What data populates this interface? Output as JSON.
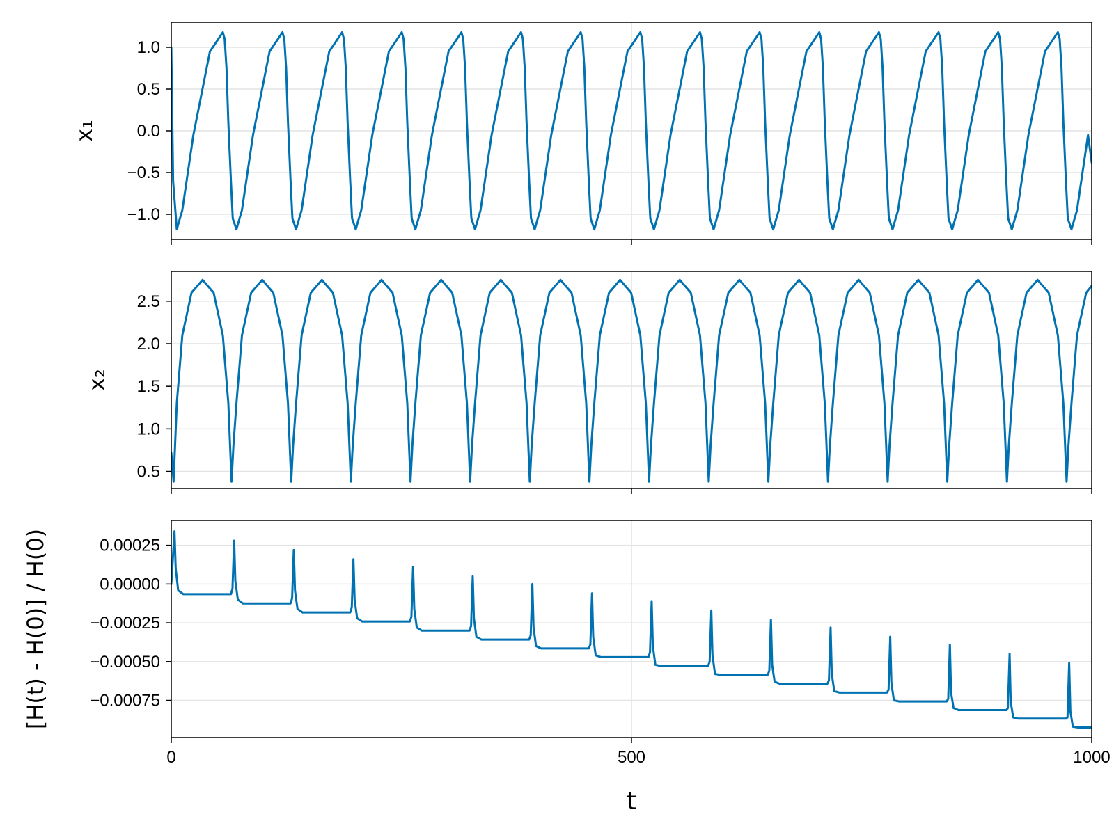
{
  "chart_data": [
    {
      "type": "line",
      "ylabel": "x₁",
      "xlabel": "",
      "xlim": [
        0,
        1000
      ],
      "ylim": [
        -1.3,
        1.3
      ],
      "yticks": [
        1.0,
        0.5,
        0.0,
        -0.5,
        -1.0
      ],
      "ytick_labels": [
        "1.0",
        "0.5",
        "0.0",
        "−0.5",
        "−1.0"
      ],
      "xticks": [
        0,
        500,
        1000
      ],
      "xtick_labels": [
        "",
        "",
        ""
      ],
      "grid": true,
      "series": [
        {
          "color": "#0072b2",
          "period": 64.8,
          "x": [
            0,
            2,
            6,
            12,
            24,
            42,
            56,
            58,
            60,
            62,
            64.8,
            66.8,
            70.8,
            76.8,
            88.8,
            106.8,
            120.8,
            122.8,
            124.8,
            126.8,
            129.6,
            131.6,
            135.6,
            141.6,
            153.6,
            171.6,
            185.6,
            187.6,
            189.6,
            191.6,
            194.4,
            196.4,
            200.4,
            206.4,
            218.4,
            236.4,
            250.4,
            252.4,
            254.4,
            256.4,
            259.2,
            261.2,
            265.2,
            271.2,
            283.2,
            301.2,
            315.2,
            317.2,
            319.2,
            321.2,
            324.0,
            326.0,
            330.0,
            336.0,
            348.0,
            366.0,
            380.0,
            382.0,
            384.0,
            386.0,
            388.8,
            390.8,
            394.8,
            400.8,
            412.8,
            430.8,
            444.8,
            446.8,
            448.8,
            450.8,
            453.6,
            455.6,
            459.6,
            465.6,
            477.6,
            495.6,
            509.6,
            511.6,
            513.6,
            515.6,
            518.4,
            520.4,
            524.4,
            530.4,
            542.4,
            560.4,
            574.4,
            576.4,
            578.4,
            580.4,
            583.2,
            585.2,
            589.2,
            595.2,
            607.2,
            625.2,
            639.2,
            641.2,
            643.2,
            645.2,
            648.0,
            650.0,
            654.0,
            660.0,
            672.0,
            690.0,
            704.0,
            706.0,
            708.0,
            710.0,
            712.8,
            714.8,
            718.8,
            724.8,
            736.8,
            754.8,
            768.8,
            770.8,
            772.8,
            774.8,
            777.6,
            779.6,
            783.6,
            789.6,
            801.6,
            819.6,
            833.6,
            835.6,
            837.6,
            839.6,
            842.4,
            844.4,
            848.4,
            854.4,
            866.4,
            884.4,
            898.4,
            900.4,
            902.4,
            904.4,
            907.2,
            909.2,
            913.2,
            919.2,
            931.2,
            949.2,
            963.2,
            965.2,
            967.2,
            969.2,
            972.0,
            974.0,
            978.0,
            984.0,
            996.0,
            1000
          ],
          "y": [
            1.0,
            -0.6,
            -1.18,
            -0.95,
            -0.05,
            0.95,
            1.18,
            1.1,
            0.75,
            0.1,
            -0.6,
            -1.05,
            -1.18,
            -0.95,
            -0.05,
            0.95,
            1.18,
            1.1,
            0.75,
            0.1,
            -0.6,
            -1.05,
            -1.18,
            -0.95,
            -0.05,
            0.95,
            1.18,
            1.1,
            0.75,
            0.1,
            -0.6,
            -1.05,
            -1.18,
            -0.95,
            -0.05,
            0.95,
            1.18,
            1.1,
            0.75,
            0.1,
            -0.6,
            -1.05,
            -1.18,
            -0.95,
            -0.05,
            0.95,
            1.18,
            1.1,
            0.75,
            0.1,
            -0.6,
            -1.05,
            -1.18,
            -0.95,
            -0.05,
            0.95,
            1.18,
            1.1,
            0.75,
            0.1,
            -0.6,
            -1.05,
            -1.18,
            -0.95,
            -0.05,
            0.95,
            1.18,
            1.1,
            0.75,
            0.1,
            -0.6,
            -1.05,
            -1.18,
            -0.95,
            -0.05,
            0.95,
            1.18,
            1.1,
            0.75,
            0.1,
            -0.6,
            -1.05,
            -1.18,
            -0.95,
            -0.05,
            0.95,
            1.18,
            1.1,
            0.75,
            0.1,
            -0.6,
            -1.05,
            -1.18,
            -0.95,
            -0.05,
            0.95,
            1.18,
            1.1,
            0.75,
            0.1,
            -0.6,
            -1.05,
            -1.18,
            -0.95,
            -0.05,
            0.95,
            1.18,
            1.1,
            0.75,
            0.1,
            -0.6,
            -1.05,
            -1.18,
            -0.95,
            -0.05,
            0.95,
            1.18,
            1.1,
            0.75,
            0.1,
            -0.6,
            -1.05,
            -1.18,
            -0.95,
            -0.05,
            0.95,
            1.18,
            1.1,
            0.75,
            0.1,
            -0.6,
            -1.05,
            -1.18,
            -0.95,
            -0.05,
            0.95,
            1.18,
            1.1,
            0.75,
            0.1,
            -0.6,
            -1.05,
            -1.18,
            -0.95,
            -0.05,
            0.95,
            1.18,
            1.1,
            0.75,
            0.1,
            -0.6,
            -1.05,
            -1.18,
            -0.95,
            -0.05,
            -0.38
          ]
        }
      ]
    },
    {
      "type": "line",
      "ylabel": "x₂",
      "xlabel": "",
      "xlim": [
        0,
        1000
      ],
      "ylim": [
        0.3,
        2.85
      ],
      "yticks": [
        2.5,
        2.0,
        1.5,
        1.0,
        0.5
      ],
      "ytick_labels": [
        "2.5",
        "2.0",
        "1.5",
        "1.0",
        "0.5"
      ],
      "xticks": [
        0,
        500,
        1000
      ],
      "xtick_labels": [
        "",
        "",
        ""
      ],
      "grid": true,
      "series": [
        {
          "color": "#0072b2",
          "x": [
            0,
            2.5,
            6,
            12,
            22,
            34,
            46,
            56,
            62,
            65.5,
            67.5,
            70.8,
            76.8,
            86.8,
            98.8,
            110.8,
            120.8,
            126.8,
            130.3,
            132.3,
            135.6,
            141.6,
            151.6,
            163.6,
            175.6,
            185.6,
            191.6,
            195.1,
            197.1,
            200.4,
            206.4,
            216.4,
            228.4,
            240.4,
            250.4,
            256.4,
            259.9,
            261.9,
            265.2,
            271.2,
            281.2,
            293.2,
            305.2,
            315.2,
            321.2,
            324.7,
            326.7,
            330.0,
            336.0,
            346.0,
            358.0,
            370.0,
            380.0,
            386.0,
            389.5,
            391.5,
            394.8,
            400.8,
            410.8,
            422.8,
            434.8,
            444.8,
            450.8,
            454.3,
            456.3,
            459.6,
            465.6,
            475.6,
            487.6,
            499.6,
            509.6,
            515.6,
            519.1,
            521.1,
            524.4,
            530.4,
            540.4,
            552.4,
            564.4,
            574.4,
            580.4,
            583.9,
            585.9,
            589.2,
            595.2,
            605.2,
            617.2,
            629.2,
            639.2,
            645.2,
            648.7,
            650.7,
            654.0,
            660.0,
            670.0,
            682.0,
            694.0,
            704.0,
            710.0,
            713.5,
            715.5,
            718.8,
            724.8,
            734.8,
            746.8,
            758.8,
            768.8,
            774.8,
            778.3,
            780.3,
            783.6,
            789.6,
            799.6,
            811.6,
            823.6,
            833.6,
            839.6,
            843.1,
            845.1,
            848.4,
            854.4,
            864.4,
            876.4,
            888.4,
            898.4,
            904.4,
            907.9,
            909.9,
            913.2,
            919.2,
            929.2,
            941.2,
            953.2,
            963.2,
            969.2,
            972.7,
            974.7,
            978.0,
            984.0,
            994.0,
            1000
          ],
          "y": [
            0.72,
            0.38,
            1.3,
            2.1,
            2.6,
            2.75,
            2.6,
            2.1,
            1.3,
            0.38,
            0.8,
            1.3,
            2.1,
            2.6,
            2.75,
            2.6,
            2.1,
            1.3,
            0.38,
            0.8,
            1.3,
            2.1,
            2.6,
            2.75,
            2.6,
            2.1,
            1.3,
            0.38,
            0.8,
            1.3,
            2.1,
            2.6,
            2.75,
            2.6,
            2.1,
            1.3,
            0.38,
            0.8,
            1.3,
            2.1,
            2.6,
            2.75,
            2.6,
            2.1,
            1.3,
            0.38,
            0.8,
            1.3,
            2.1,
            2.6,
            2.75,
            2.6,
            2.1,
            1.3,
            0.38,
            0.8,
            1.3,
            2.1,
            2.6,
            2.75,
            2.6,
            2.1,
            1.3,
            0.38,
            0.8,
            1.3,
            2.1,
            2.6,
            2.75,
            2.6,
            2.1,
            1.3,
            0.38,
            0.8,
            1.3,
            2.1,
            2.6,
            2.75,
            2.6,
            2.1,
            1.3,
            0.38,
            0.8,
            1.3,
            2.1,
            2.6,
            2.75,
            2.6,
            2.1,
            1.3,
            0.38,
            0.8,
            1.3,
            2.1,
            2.6,
            2.75,
            2.6,
            2.1,
            1.3,
            0.38,
            0.8,
            1.3,
            2.1,
            2.6,
            2.75,
            2.6,
            2.1,
            1.3,
            0.38,
            0.8,
            1.3,
            2.1,
            2.6,
            2.75,
            2.6,
            2.1,
            1.3,
            0.38,
            0.8,
            1.3,
            2.1,
            2.6,
            2.75,
            2.6,
            2.1,
            1.3,
            0.38,
            0.8,
            1.3,
            2.1,
            2.6,
            2.75,
            2.6,
            2.1,
            1.3,
            0.38,
            0.8,
            1.3,
            2.1,
            2.6,
            2.68
          ]
        }
      ]
    },
    {
      "type": "line",
      "ylabel": "[H(t) - H(0)] / H(0)",
      "xlabel": "t",
      "xlim": [
        0,
        1000
      ],
      "ylim": [
        -0.00099,
        0.00041
      ],
      "yticks": [
        0.00025,
        0.0,
        -0.00025,
        -0.0005,
        -0.00075
      ],
      "ytick_labels": [
        "0.00025",
        "0.00000",
        "−0.00025",
        "−0.00050",
        "−0.00075"
      ],
      "xticks": [
        0,
        500,
        1000
      ],
      "xtick_labels": [
        "0",
        "500",
        "1000"
      ],
      "grid": true,
      "series": [
        {
          "color": "#0072b2",
          "x": [
            0,
            3.5,
            4.8,
            7.5,
            13,
            64.8,
            66.5,
            68.3,
            69.6,
            72.3,
            77.8,
            129.6,
            131.3,
            133.1,
            134.4,
            137.1,
            142.6,
            194.4,
            196.1,
            197.9,
            199.2,
            201.9,
            207.4,
            259.2,
            260.9,
            262.7,
            264.0,
            266.7,
            272.2,
            324.0,
            325.7,
            327.5,
            328.8,
            331.5,
            337.0,
            388.8,
            390.5,
            392.3,
            393.6,
            396.3,
            401.8,
            453.6,
            455.3,
            457.1,
            458.4,
            461.1,
            466.6,
            518.4,
            520.1,
            521.9,
            523.2,
            525.9,
            531.4,
            583.2,
            584.9,
            586.7,
            588.0,
            590.7,
            596.2,
            648.0,
            649.7,
            651.5,
            652.8,
            655.5,
            661.0,
            712.8,
            714.5,
            716.3,
            717.6,
            720.3,
            725.8,
            777.6,
            779.3,
            781.1,
            782.4,
            785.1,
            790.6,
            842.4,
            844.1,
            845.9,
            847.2,
            849.9,
            855.4,
            907.2,
            908.9,
            910.8,
            912.0,
            914.7,
            920.2,
            972.0,
            973.7,
            975.5,
            976.8,
            979.5,
            985.0,
            1000
          ],
          "y": [
            0.0,
            0.00034,
            0.0001,
            -4e-05,
            -6.5e-05,
            -6.5e-05,
            -3e-05,
            0.00028,
            2e-05,
            -0.0001,
            -0.000125,
            -0.000125,
            -9e-05,
            0.00022,
            -4e-05,
            -0.00016,
            -0.000183,
            -0.000183,
            -0.00015,
            0.00016,
            -0.0001,
            -0.00022,
            -0.000241,
            -0.000241,
            -0.00021,
            0.00011,
            -0.00016,
            -0.00028,
            -0.0003,
            -0.0003,
            -0.00027,
            5e-05,
            -0.00022,
            -0.00034,
            -0.000358,
            -0.000358,
            -0.00033,
            0.0,
            -0.00028,
            -0.0004,
            -0.000415,
            -0.000415,
            -0.00039,
            -6e-05,
            -0.00034,
            -0.00046,
            -0.000471,
            -0.000471,
            -0.00044,
            -0.00011,
            -0.0004,
            -0.00052,
            -0.000528,
            -0.000528,
            -0.0005,
            -0.00017,
            -0.00046,
            -0.00058,
            -0.000585,
            -0.000585,
            -0.00056,
            -0.00023,
            -0.00052,
            -0.00063,
            -0.000643,
            -0.000643,
            -0.00062,
            -0.00028,
            -0.00058,
            -0.00069,
            -0.0007,
            -0.0007,
            -0.00068,
            -0.00034,
            -0.00064,
            -0.00075,
            -0.000757,
            -0.000757,
            -0.00074,
            -0.00039,
            -0.0007,
            -0.0008,
            -0.000813,
            -0.000813,
            -0.0008,
            -0.00045,
            -0.00076,
            -0.00086,
            -0.000868,
            -0.000868,
            -0.00086,
            -0.00051,
            -0.00082,
            -0.00092,
            -0.000925,
            -0.000925
          ]
        }
      ]
    }
  ]
}
